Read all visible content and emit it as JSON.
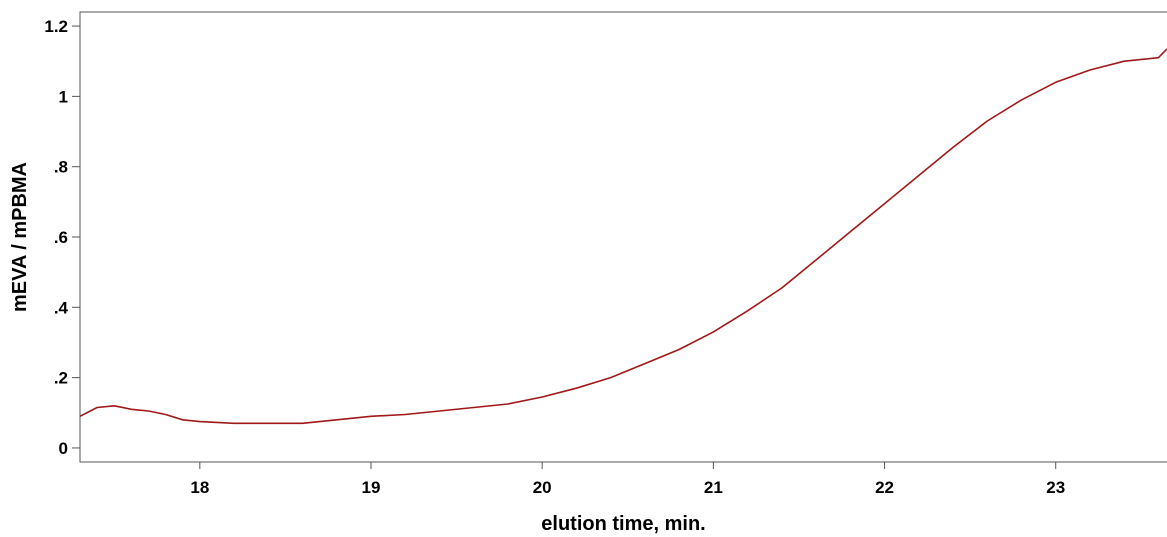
{
  "chart_data": {
    "type": "line",
    "title": "",
    "xlabel": "elution time, min.",
    "ylabel": "mEVA / mPBMA",
    "xlim": [
      17.3,
      23.65
    ],
    "ylim": [
      -0.04,
      1.24
    ],
    "x_ticks": [
      18,
      19,
      20,
      21,
      22,
      23
    ],
    "x_tick_labels": [
      "18",
      "19",
      "20",
      "21",
      "22",
      "23"
    ],
    "y_ticks": [
      0,
      0.2,
      0.4,
      0.6,
      0.8,
      1.0,
      1.2
    ],
    "y_tick_labels": [
      "0",
      ".2",
      ".4",
      ".6",
      ".8",
      "1",
      "1.2"
    ],
    "grid": false,
    "series": [
      {
        "color": "#a01818",
        "x": [
          17.3,
          17.4,
          17.5,
          17.6,
          17.7,
          17.8,
          17.9,
          18.0,
          18.2,
          18.4,
          18.6,
          18.8,
          19.0,
          19.2,
          19.4,
          19.6,
          19.8,
          20.0,
          20.2,
          20.4,
          20.6,
          20.8,
          21.0,
          21.2,
          21.4,
          21.6,
          21.8,
          22.0,
          22.2,
          22.4,
          22.6,
          22.8,
          23.0,
          23.2,
          23.4,
          23.6,
          23.65
        ],
        "y": [
          0.09,
          0.115,
          0.12,
          0.11,
          0.105,
          0.095,
          0.08,
          0.075,
          0.07,
          0.07,
          0.07,
          0.08,
          0.09,
          0.095,
          0.105,
          0.115,
          0.125,
          0.145,
          0.17,
          0.2,
          0.24,
          0.28,
          0.33,
          0.39,
          0.455,
          0.535,
          0.615,
          0.695,
          0.775,
          0.855,
          0.93,
          0.99,
          1.04,
          1.075,
          1.1,
          1.11,
          1.135
        ]
      }
    ]
  }
}
